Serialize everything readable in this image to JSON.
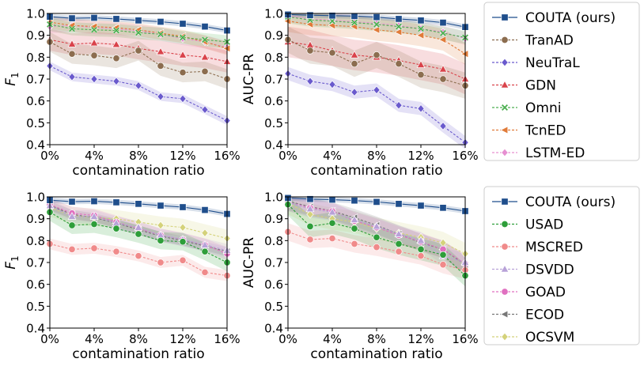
{
  "chart_data": [
    {
      "type": "line",
      "ylabel": "F",
      "ylabel_sub": "1",
      "xlabel": "contamination ratio",
      "ylim": [
        0.4,
        1.0
      ],
      "xlim": [
        0,
        16
      ],
      "xticks": [
        "0%",
        "4%",
        "8%",
        "12%",
        "16%"
      ],
      "yticks": [
        "0.4",
        "0.5",
        "0.6",
        "0.7",
        "0.8",
        "0.9",
        "1.0"
      ],
      "x": [
        0,
        2,
        4,
        6,
        8,
        10,
        12,
        14,
        16
      ],
      "series": [
        {
          "name": "COUTA (ours)",
          "color": "#1f4e8c",
          "marker": "square",
          "values": [
            0.985,
            0.978,
            0.98,
            0.975,
            0.968,
            0.962,
            0.953,
            0.94,
            0.922
          ],
          "band": 0.012
        },
        {
          "name": "TranAD",
          "color": "#8c6d4f",
          "marker": "circle",
          "values": [
            0.87,
            0.815,
            0.808,
            0.795,
            0.83,
            0.76,
            0.73,
            0.735,
            0.7
          ],
          "band": 0.045
        },
        {
          "name": "NeuTraL",
          "color": "#6a5acd",
          "marker": "diamond",
          "values": [
            0.76,
            0.71,
            0.7,
            0.69,
            0.67,
            0.62,
            0.61,
            0.56,
            0.51
          ],
          "band": 0.02
        },
        {
          "name": "GDN",
          "color": "#d9434b",
          "marker": "triangle",
          "values": [
            0.88,
            0.86,
            0.865,
            0.858,
            0.84,
            0.825,
            0.81,
            0.8,
            0.78
          ],
          "band": 0.05
        },
        {
          "name": "Omni",
          "color": "#4caf50",
          "marker": "x",
          "values": [
            0.95,
            0.93,
            0.925,
            0.922,
            0.912,
            0.905,
            0.89,
            0.88,
            0.87
          ],
          "band": 0.03
        },
        {
          "name": "TcnED",
          "color": "#e07b39",
          "marker": "tri-left",
          "values": [
            0.96,
            0.945,
            0.94,
            0.935,
            0.925,
            0.91,
            0.895,
            0.87,
            0.84
          ],
          "band": 0.03
        },
        {
          "name": "LSTM-ED",
          "color": "#e68fd1",
          "marker": "diamond",
          "values": [
            0.94,
            0.945,
            0.935,
            0.93,
            0.92,
            0.905,
            0.885,
            0.87,
            0.845
          ],
          "band": 0.03
        }
      ]
    },
    {
      "type": "line",
      "ylabel": "AUC-PR",
      "xlabel": "contamination ratio",
      "ylim": [
        0.4,
        1.0
      ],
      "xlim": [
        0,
        16
      ],
      "xticks": [
        "0%",
        "4%",
        "8%",
        "12%",
        "16%"
      ],
      "yticks": [
        "0.4",
        "0.5",
        "0.6",
        "0.7",
        "0.8",
        "0.9",
        "1.0"
      ],
      "x": [
        0,
        2,
        4,
        6,
        8,
        10,
        12,
        14,
        16
      ],
      "series": [
        {
          "name": "COUTA (ours)",
          "color": "#1f4e8c",
          "marker": "square",
          "values": [
            0.995,
            0.992,
            0.99,
            0.988,
            0.983,
            0.975,
            0.968,
            0.958,
            0.938
          ],
          "band": 0.012
        },
        {
          "name": "TranAD",
          "color": "#8c6d4f",
          "marker": "circle",
          "values": [
            0.88,
            0.83,
            0.82,
            0.77,
            0.81,
            0.77,
            0.72,
            0.7,
            0.67
          ],
          "band": 0.06
        },
        {
          "name": "NeuTraL",
          "color": "#6a5acd",
          "marker": "diamond",
          "values": [
            0.725,
            0.69,
            0.675,
            0.64,
            0.65,
            0.58,
            0.565,
            0.485,
            0.41
          ],
          "band": 0.03
        },
        {
          "name": "GDN",
          "color": "#d9434b",
          "marker": "triangle",
          "values": [
            0.87,
            0.855,
            0.83,
            0.81,
            0.8,
            0.785,
            0.765,
            0.745,
            0.7
          ],
          "band": 0.07
        },
        {
          "name": "Omni",
          "color": "#4caf50",
          "marker": "x",
          "values": [
            0.985,
            0.97,
            0.965,
            0.958,
            0.95,
            0.94,
            0.93,
            0.91,
            0.89
          ],
          "band": 0.03
        },
        {
          "name": "TcnED",
          "color": "#e07b39",
          "marker": "tri-left",
          "values": [
            0.965,
            0.95,
            0.945,
            0.94,
            0.925,
            0.915,
            0.9,
            0.88,
            0.815
          ],
          "band": 0.05
        },
        {
          "name": "LSTM-ED",
          "color": "#e68fd1",
          "marker": "diamond",
          "values": [
            0.99,
            0.975,
            0.97,
            0.962,
            0.955,
            0.945,
            0.93,
            0.915,
            0.885
          ],
          "band": 0.03
        }
      ]
    },
    {
      "type": "line",
      "ylabel": "F",
      "ylabel_sub": "1",
      "xlabel": "contamination ratio",
      "ylim": [
        0.4,
        1.0
      ],
      "xlim": [
        0,
        16
      ],
      "xticks": [
        "0%",
        "4%",
        "8%",
        "12%",
        "16%"
      ],
      "yticks": [
        "0.4",
        "0.5",
        "0.6",
        "0.7",
        "0.8",
        "0.9",
        "1.0"
      ],
      "x": [
        0,
        2,
        4,
        6,
        8,
        10,
        12,
        14,
        16
      ],
      "series": [
        {
          "name": "COUTA (ours)",
          "color": "#1f4e8c",
          "marker": "square",
          "values": [
            0.985,
            0.978,
            0.98,
            0.975,
            0.968,
            0.96,
            0.953,
            0.94,
            0.922
          ],
          "band": 0.012
        },
        {
          "name": "USAD",
          "color": "#2e9e3a",
          "marker": "circle",
          "values": [
            0.93,
            0.87,
            0.875,
            0.855,
            0.83,
            0.8,
            0.795,
            0.75,
            0.7
          ],
          "band": 0.04
        },
        {
          "name": "MSCRED",
          "color": "#f08a8a",
          "marker": "circle",
          "values": [
            0.785,
            0.76,
            0.765,
            0.75,
            0.73,
            0.7,
            0.71,
            0.655,
            0.64
          ],
          "band": 0.025
        },
        {
          "name": "DSVDD",
          "color": "#b8a2d8",
          "marker": "triangle",
          "values": [
            0.96,
            0.91,
            0.91,
            0.88,
            0.86,
            0.825,
            0.805,
            0.78,
            0.755
          ],
          "band": 0.03
        },
        {
          "name": "GOAD",
          "color": "#e070c0",
          "marker": "circle",
          "values": [
            0.965,
            0.925,
            0.915,
            0.885,
            0.855,
            0.825,
            0.805,
            0.78,
            0.74
          ],
          "band": 0.03
        },
        {
          "name": "ECOD",
          "color": "#777777",
          "marker": "tri-left",
          "values": [
            0.96,
            0.92,
            0.905,
            0.88,
            0.85,
            0.82,
            0.8,
            0.775,
            0.75
          ],
          "band": 0.02
        },
        {
          "name": "OCSVM",
          "color": "#d4d27a",
          "marker": "diamond",
          "values": [
            0.95,
            0.915,
            0.905,
            0.9,
            0.885,
            0.87,
            0.86,
            0.835,
            0.81
          ],
          "band": 0.04
        }
      ]
    },
    {
      "type": "line",
      "ylabel": "AUC-PR",
      "xlabel": "contamination ratio",
      "ylim": [
        0.4,
        1.0
      ],
      "xlim": [
        0,
        16
      ],
      "xticks": [
        "0%",
        "4%",
        "8%",
        "12%",
        "16%"
      ],
      "yticks": [
        "0.4",
        "0.5",
        "0.6",
        "0.7",
        "0.8",
        "0.9",
        "1.0"
      ],
      "x": [
        0,
        2,
        4,
        6,
        8,
        10,
        12,
        14,
        16
      ],
      "series": [
        {
          "name": "COUTA (ours)",
          "color": "#1f4e8c",
          "marker": "square",
          "values": [
            0.995,
            0.99,
            0.987,
            0.983,
            0.977,
            0.968,
            0.96,
            0.95,
            0.935
          ],
          "band": 0.012
        },
        {
          "name": "USAD",
          "color": "#2e9e3a",
          "marker": "circle",
          "values": [
            0.965,
            0.865,
            0.88,
            0.855,
            0.815,
            0.785,
            0.76,
            0.735,
            0.64
          ],
          "band": 0.05
        },
        {
          "name": "MSCRED",
          "color": "#f08a8a",
          "marker": "circle",
          "values": [
            0.84,
            0.805,
            0.81,
            0.785,
            0.77,
            0.75,
            0.73,
            0.69,
            0.665
          ],
          "band": 0.04
        },
        {
          "name": "DSVDD",
          "color": "#b8a2d8",
          "marker": "triangle",
          "values": [
            0.975,
            0.945,
            0.93,
            0.895,
            0.865,
            0.83,
            0.8,
            0.73,
            0.7
          ],
          "band": 0.04
        },
        {
          "name": "GOAD",
          "color": "#e070c0",
          "marker": "circle",
          "values": [
            0.975,
            0.95,
            0.935,
            0.89,
            0.86,
            0.825,
            0.795,
            0.76,
            0.695
          ],
          "band": 0.04
        },
        {
          "name": "ECOD",
          "color": "#777777",
          "marker": "tri-left",
          "values": [
            0.98,
            0.955,
            0.935,
            0.905,
            0.87,
            0.83,
            0.79,
            0.76,
            0.69
          ],
          "band": 0.04
        },
        {
          "name": "OCSVM",
          "color": "#d4d27a",
          "marker": "diamond",
          "values": [
            0.97,
            0.92,
            0.9,
            0.885,
            0.855,
            0.835,
            0.815,
            0.79,
            0.74
          ],
          "band": 0.05
        }
      ]
    }
  ],
  "legends": [
    {
      "items": [
        "COUTA (ours)",
        "TranAD",
        "NeuTraL",
        "GDN",
        "Omni",
        "TcnED",
        "LSTM-ED"
      ],
      "placement": "right of top row"
    },
    {
      "items": [
        "COUTA (ours)",
        "USAD",
        "MSCRED",
        "DSVDD",
        "GOAD",
        "ECOD",
        "OCSVM"
      ],
      "placement": "right of bottom row"
    }
  ]
}
